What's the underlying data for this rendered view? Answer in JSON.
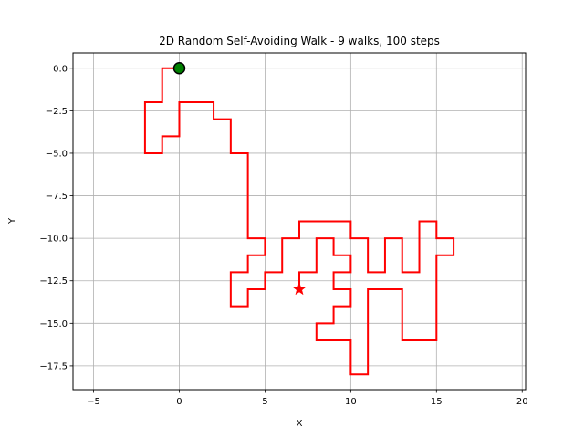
{
  "chart_data": {
    "type": "line",
    "title": "2D Random Self-Avoiding Walk - 9 walks, 100 steps",
    "xlabel": "X",
    "ylabel": "Y",
    "xlim": [
      -6.2,
      20.2
    ],
    "ylim": [
      -18.9,
      0.9
    ],
    "xticks": [
      -5,
      0,
      5,
      10,
      15,
      20
    ],
    "yticks": [
      0.0,
      -2.5,
      -5.0,
      -7.5,
      -10.0,
      -12.5,
      -15.0,
      -17.5
    ],
    "xtick_labels": [
      "−5",
      "0",
      "5",
      "10",
      "15",
      "20"
    ],
    "ytick_labels": [
      "0.0",
      "−2.5",
      "−5.0",
      "−7.5",
      "−10.0",
      "−12.5",
      "−15.0",
      "−17.5"
    ],
    "grid": true,
    "series": [
      {
        "color": "#ff0000",
        "points": [
          [
            0,
            0
          ],
          [
            -1,
            0
          ],
          [
            -1,
            -2
          ],
          [
            -2,
            -2
          ],
          [
            -2,
            -5
          ],
          [
            -1,
            -5
          ],
          [
            -1,
            -4
          ],
          [
            0,
            -4
          ],
          [
            0,
            -2
          ],
          [
            2,
            -2
          ],
          [
            2,
            -3
          ],
          [
            3,
            -3
          ],
          [
            3,
            -5
          ],
          [
            4,
            -5
          ],
          [
            4,
            -10
          ],
          [
            5,
            -10
          ],
          [
            5,
            -11
          ],
          [
            4,
            -11
          ],
          [
            4,
            -12
          ],
          [
            3,
            -12
          ],
          [
            3,
            -14
          ],
          [
            4,
            -14
          ],
          [
            4,
            -13
          ],
          [
            5,
            -13
          ],
          [
            5,
            -12
          ],
          [
            6,
            -12
          ],
          [
            6,
            -10
          ],
          [
            7,
            -10
          ],
          [
            7,
            -9
          ],
          [
            10,
            -9
          ],
          [
            10,
            -10
          ],
          [
            11,
            -10
          ],
          [
            11,
            -12
          ],
          [
            12,
            -12
          ],
          [
            12,
            -10
          ],
          [
            13,
            -10
          ],
          [
            13,
            -12
          ],
          [
            14,
            -12
          ],
          [
            14,
            -9
          ],
          [
            15,
            -9
          ],
          [
            15,
            -10
          ],
          [
            16,
            -10
          ],
          [
            16,
            -11
          ],
          [
            15,
            -11
          ],
          [
            15,
            -16
          ],
          [
            13,
            -16
          ],
          [
            13,
            -13
          ],
          [
            11,
            -13
          ],
          [
            11,
            -18
          ],
          [
            10,
            -18
          ],
          [
            10,
            -16
          ],
          [
            8,
            -16
          ],
          [
            8,
            -15
          ],
          [
            9,
            -15
          ],
          [
            9,
            -14
          ],
          [
            10,
            -14
          ],
          [
            10,
            -13
          ],
          [
            9,
            -13
          ],
          [
            9,
            -12
          ],
          [
            10,
            -12
          ],
          [
            10,
            -11
          ],
          [
            9,
            -11
          ],
          [
            9,
            -10
          ],
          [
            8,
            -10
          ],
          [
            8,
            -12
          ],
          [
            7,
            -12
          ],
          [
            7,
            -13
          ]
        ]
      }
    ],
    "start_marker": {
      "x": 0,
      "y": 0,
      "color": "#008000",
      "shape": "circle"
    },
    "end_marker": {
      "x": 7,
      "y": -13,
      "color": "#ff0000",
      "shape": "star"
    }
  }
}
